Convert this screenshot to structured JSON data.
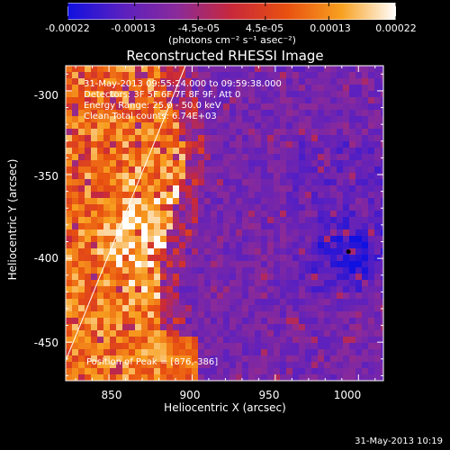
{
  "colorbar": {
    "ticks": [
      "-0.00022",
      "-0.00013",
      "-4.5e-05",
      "4.5e-05",
      "0.00013",
      "0.00022"
    ],
    "tick_values": [
      -0.00022,
      -0.00013,
      -4.5e-05,
      4.5e-05,
      0.00013,
      0.00022
    ],
    "range": [
      -0.00022,
      0.00022
    ],
    "unit_label": "(photons cm⁻² s⁻¹ asec⁻²)",
    "colors": [
      "#1010e0",
      "#5a20c0",
      "#8a2a9a",
      "#c8283a",
      "#e85010",
      "#f8a020",
      "#ffffff"
    ]
  },
  "annotations": {
    "time_range": "31-May-2013 09:55:24.000 to 09:59:38.000",
    "detectors": "Detectors: 3F 5F 6F 7F 8F 9F, Att 0",
    "energy_range": "Energy Range: 25.0 - 50.0 keV",
    "clean_counts": "Clean    Total counts: 6.74E+03",
    "peak": "Position of Peak = [876,-386]"
  },
  "footer": "31-May-2013 10:19",
  "chart_data": {
    "type": "heatmap",
    "title": "Reconstructed RHESSI Image",
    "xlabel": "Heliocentric X (arcsec)",
    "ylabel": "Heliocentric Y (arcsec)",
    "xlim": [
      824,
      1015
    ],
    "ylim": [
      -473,
      -285
    ],
    "x_ticks": [
      850,
      900,
      950,
      1000
    ],
    "y_ticks": [
      -300,
      -350,
      -400,
      -450
    ],
    "limb": [
      [
        824,
        -461
      ],
      [
        896,
        -285
      ]
    ],
    "peak": [
      876,
      -386
    ],
    "description_values": {
      "bright_region": "x < ~890, y from -285 to -473 (positive flux, red-yellow)",
      "dim_region": "x > ~890 (negative flux, purple-blue)",
      "minimum_near": [
        994,
        -396
      ]
    }
  }
}
